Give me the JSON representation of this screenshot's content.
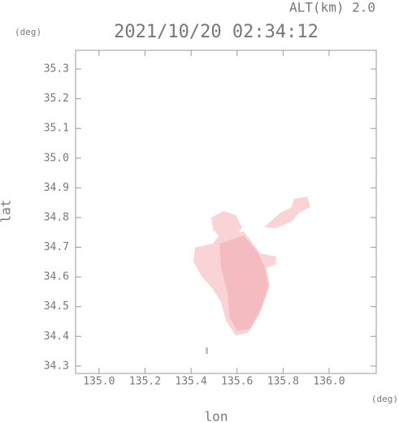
{
  "chart_data": {
    "type": "map",
    "title": "2021/10/20 02:34:12",
    "subtitle": "ALT(km)  2.0",
    "y_unit": "(deg)",
    "x_unit": "(deg)",
    "x_label": "lon",
    "y_label": "lat",
    "xlim": [
      134.898,
      136.205
    ],
    "ylim": [
      34.275,
      35.363
    ],
    "xticks": [
      {
        "value": 135.0,
        "label": "135.0"
      },
      135.2,
      135.4,
      135.6,
      135.8,
      {
        "value": 136.0,
        "label": "136.0"
      }
    ],
    "yticks": [
      34.3,
      34.4,
      34.5,
      34.6,
      34.7,
      34.8,
      34.9,
      {
        "value": 35.0,
        "label": "35.0"
      },
      35.1,
      35.2,
      35.3
    ]
  }
}
